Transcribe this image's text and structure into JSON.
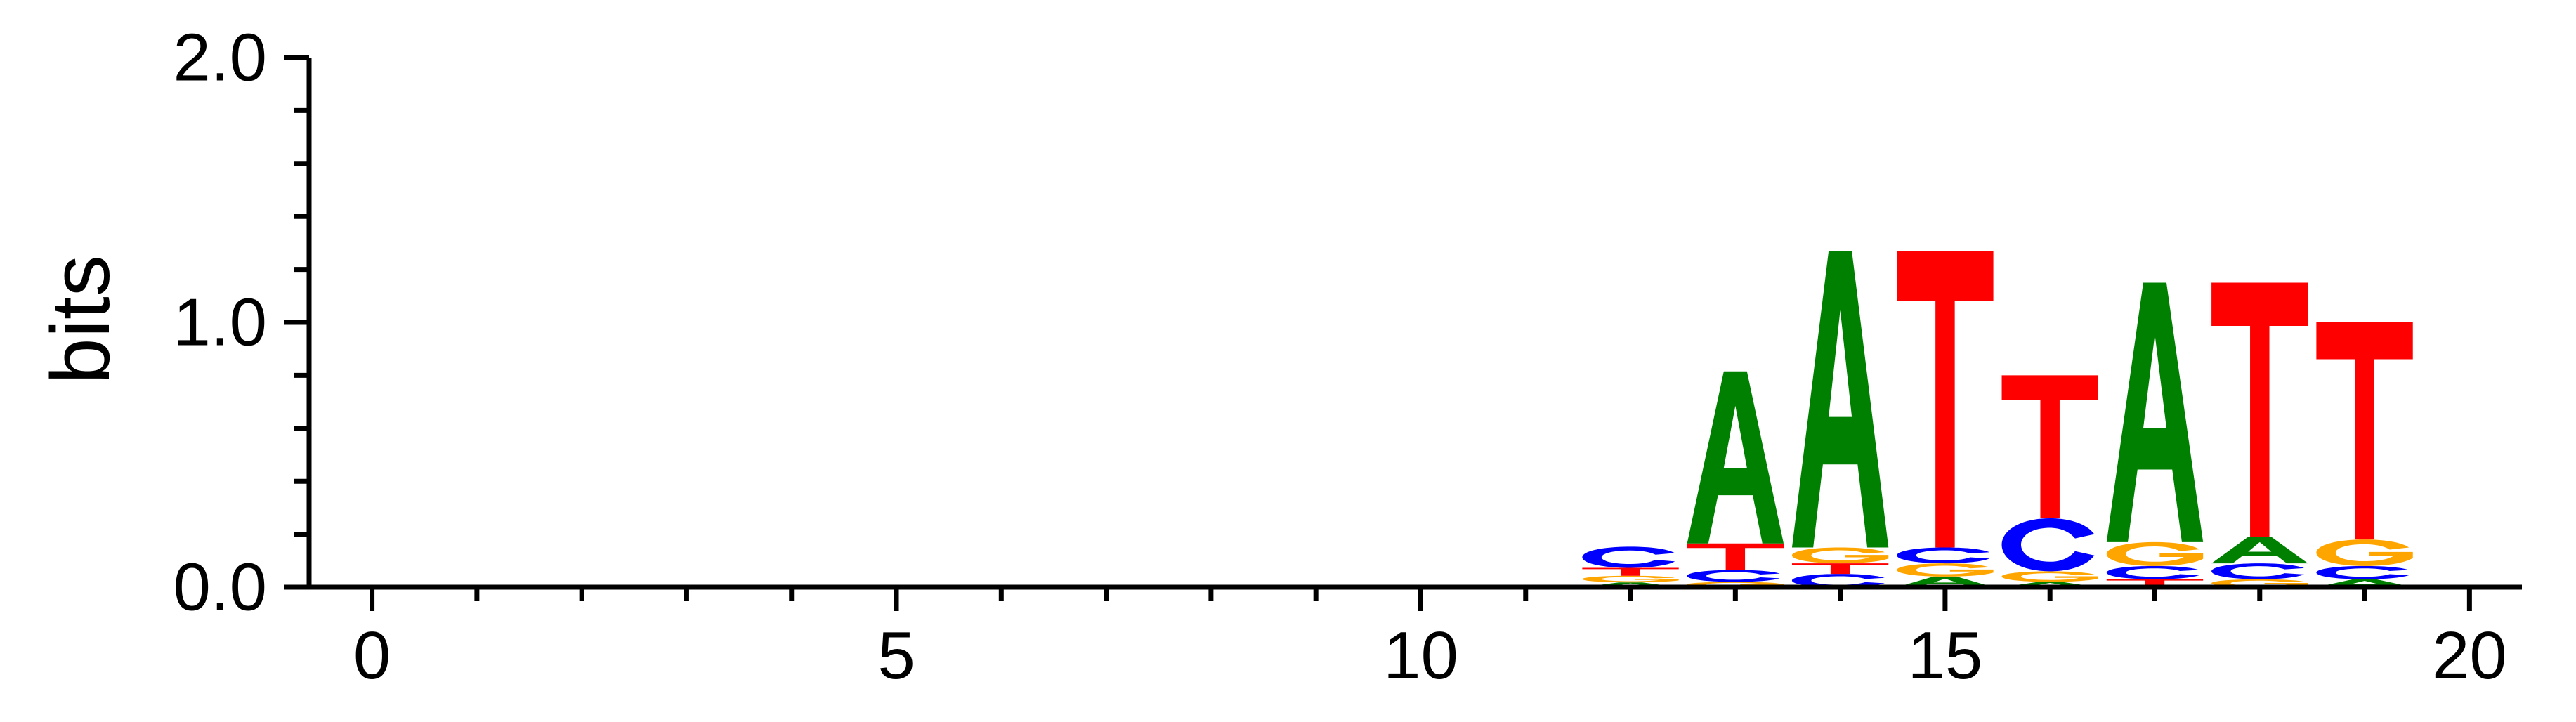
{
  "chart_data": {
    "type": "sequence-logo",
    "title": "",
    "xlabel": "",
    "ylabel": "bits",
    "xlim": [
      -0.6,
      20.5
    ],
    "ylim": [
      0,
      2
    ],
    "x_ticks": [
      0,
      5,
      10,
      15,
      20
    ],
    "x_tick_labels": [
      "0",
      "5",
      "10",
      "15",
      "20"
    ],
    "y_ticks": [
      0,
      1,
      2
    ],
    "y_tick_labels": [
      "0.0",
      "1.0",
      "2.0"
    ],
    "alphabet_colors": {
      "A": "#008000",
      "C": "#0000ff",
      "G": "#ffa500",
      "T": "#ff0000"
    },
    "positions": [
      {
        "x": 12,
        "letters": [
          {
            "base": "A",
            "bits": 0.018
          },
          {
            "base": "G",
            "bits": 0.025
          },
          {
            "base": "T",
            "bits": 0.03
          },
          {
            "base": "C",
            "bits": 0.08
          }
        ]
      },
      {
        "x": 13,
        "letters": [
          {
            "base": "G",
            "bits": 0.02
          },
          {
            "base": "C",
            "bits": 0.045
          },
          {
            "base": "T",
            "bits": 0.1
          },
          {
            "base": "A",
            "bits": 0.65
          }
        ]
      },
      {
        "x": 14,
        "letters": [
          {
            "base": "C",
            "bits": 0.05
          },
          {
            "base": "T",
            "bits": 0.04
          },
          {
            "base": "G",
            "bits": 0.06
          },
          {
            "base": "A",
            "bits": 1.12
          }
        ]
      },
      {
        "x": 15,
        "letters": [
          {
            "base": "A",
            "bits": 0.04
          },
          {
            "base": "G",
            "bits": 0.05
          },
          {
            "base": "C",
            "bits": 0.06
          },
          {
            "base": "T",
            "bits": 1.12
          }
        ]
      },
      {
        "x": 16,
        "letters": [
          {
            "base": "A",
            "bits": 0.02
          },
          {
            "base": "G",
            "bits": 0.04
          },
          {
            "base": "C",
            "bits": 0.2
          },
          {
            "base": "T",
            "bits": 0.54
          }
        ]
      },
      {
        "x": 17,
        "letters": [
          {
            "base": "T",
            "bits": 0.03
          },
          {
            "base": "C",
            "bits": 0.05
          },
          {
            "base": "G",
            "bits": 0.09
          },
          {
            "base": "A",
            "bits": 0.98
          }
        ]
      },
      {
        "x": 18,
        "letters": [
          {
            "base": "G",
            "bits": 0.03
          },
          {
            "base": "C",
            "bits": 0.06
          },
          {
            "base": "A",
            "bits": 0.1
          },
          {
            "base": "T",
            "bits": 0.96
          }
        ]
      },
      {
        "x": 19,
        "letters": [
          {
            "base": "A",
            "bits": 0.03
          },
          {
            "base": "C",
            "bits": 0.05
          },
          {
            "base": "G",
            "bits": 0.1
          },
          {
            "base": "T",
            "bits": 0.82
          }
        ]
      }
    ]
  }
}
